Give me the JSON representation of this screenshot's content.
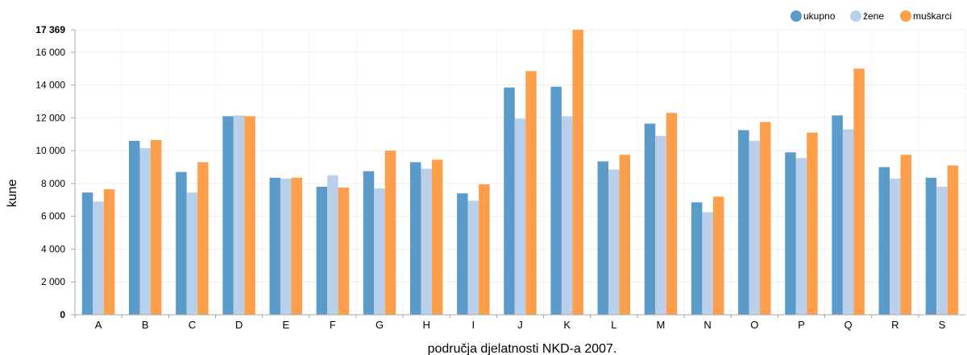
{
  "chart_data": {
    "type": "bar",
    "title": "",
    "xlabel": "područja djelatnosti NKD-a 2007.",
    "ylabel": "kune",
    "ylim": [
      0,
      17369
    ],
    "y_ticks": [
      {
        "value": 0,
        "label": "0"
      },
      {
        "value": 2000,
        "label": "2 000"
      },
      {
        "value": 4000,
        "label": "4 000"
      },
      {
        "value": 6000,
        "label": "6 000"
      },
      {
        "value": 8000,
        "label": "8 000"
      },
      {
        "value": 10000,
        "label": "10 000"
      },
      {
        "value": 12000,
        "label": "12 000"
      },
      {
        "value": 14000,
        "label": "14 000"
      },
      {
        "value": 16000,
        "label": "16 000"
      },
      {
        "value": 17369,
        "label": "17 369"
      }
    ],
    "categories": [
      "A",
      "B",
      "C",
      "D",
      "E",
      "F",
      "G",
      "H",
      "I",
      "J",
      "K",
      "L",
      "M",
      "N",
      "O",
      "P",
      "Q",
      "R",
      "S"
    ],
    "series": [
      {
        "name": "ukupno",
        "color": "#5b9bc9",
        "values": [
          7450,
          10600,
          8700,
          12100,
          8350,
          7800,
          8750,
          9300,
          7400,
          13850,
          13900,
          9350,
          11650,
          6850,
          11250,
          9900,
          12150,
          9000,
          8350
        ]
      },
      {
        "name": "žene",
        "color": "#b9cfea",
        "values": [
          6900,
          10150,
          7450,
          12150,
          8300,
          8500,
          7700,
          8900,
          6950,
          11950,
          12100,
          8850,
          10900,
          6250,
          10600,
          9550,
          11300,
          8300,
          7800
        ]
      },
      {
        "name": "muškarci",
        "color": "#ff9e4a",
        "values": [
          7650,
          10650,
          9300,
          12100,
          8350,
          7750,
          10000,
          9450,
          7950,
          14850,
          17369,
          9750,
          12300,
          7200,
          11750,
          11100,
          15000,
          9750,
          9100
        ]
      }
    ],
    "legend_position": "top-right",
    "grid": true
  }
}
